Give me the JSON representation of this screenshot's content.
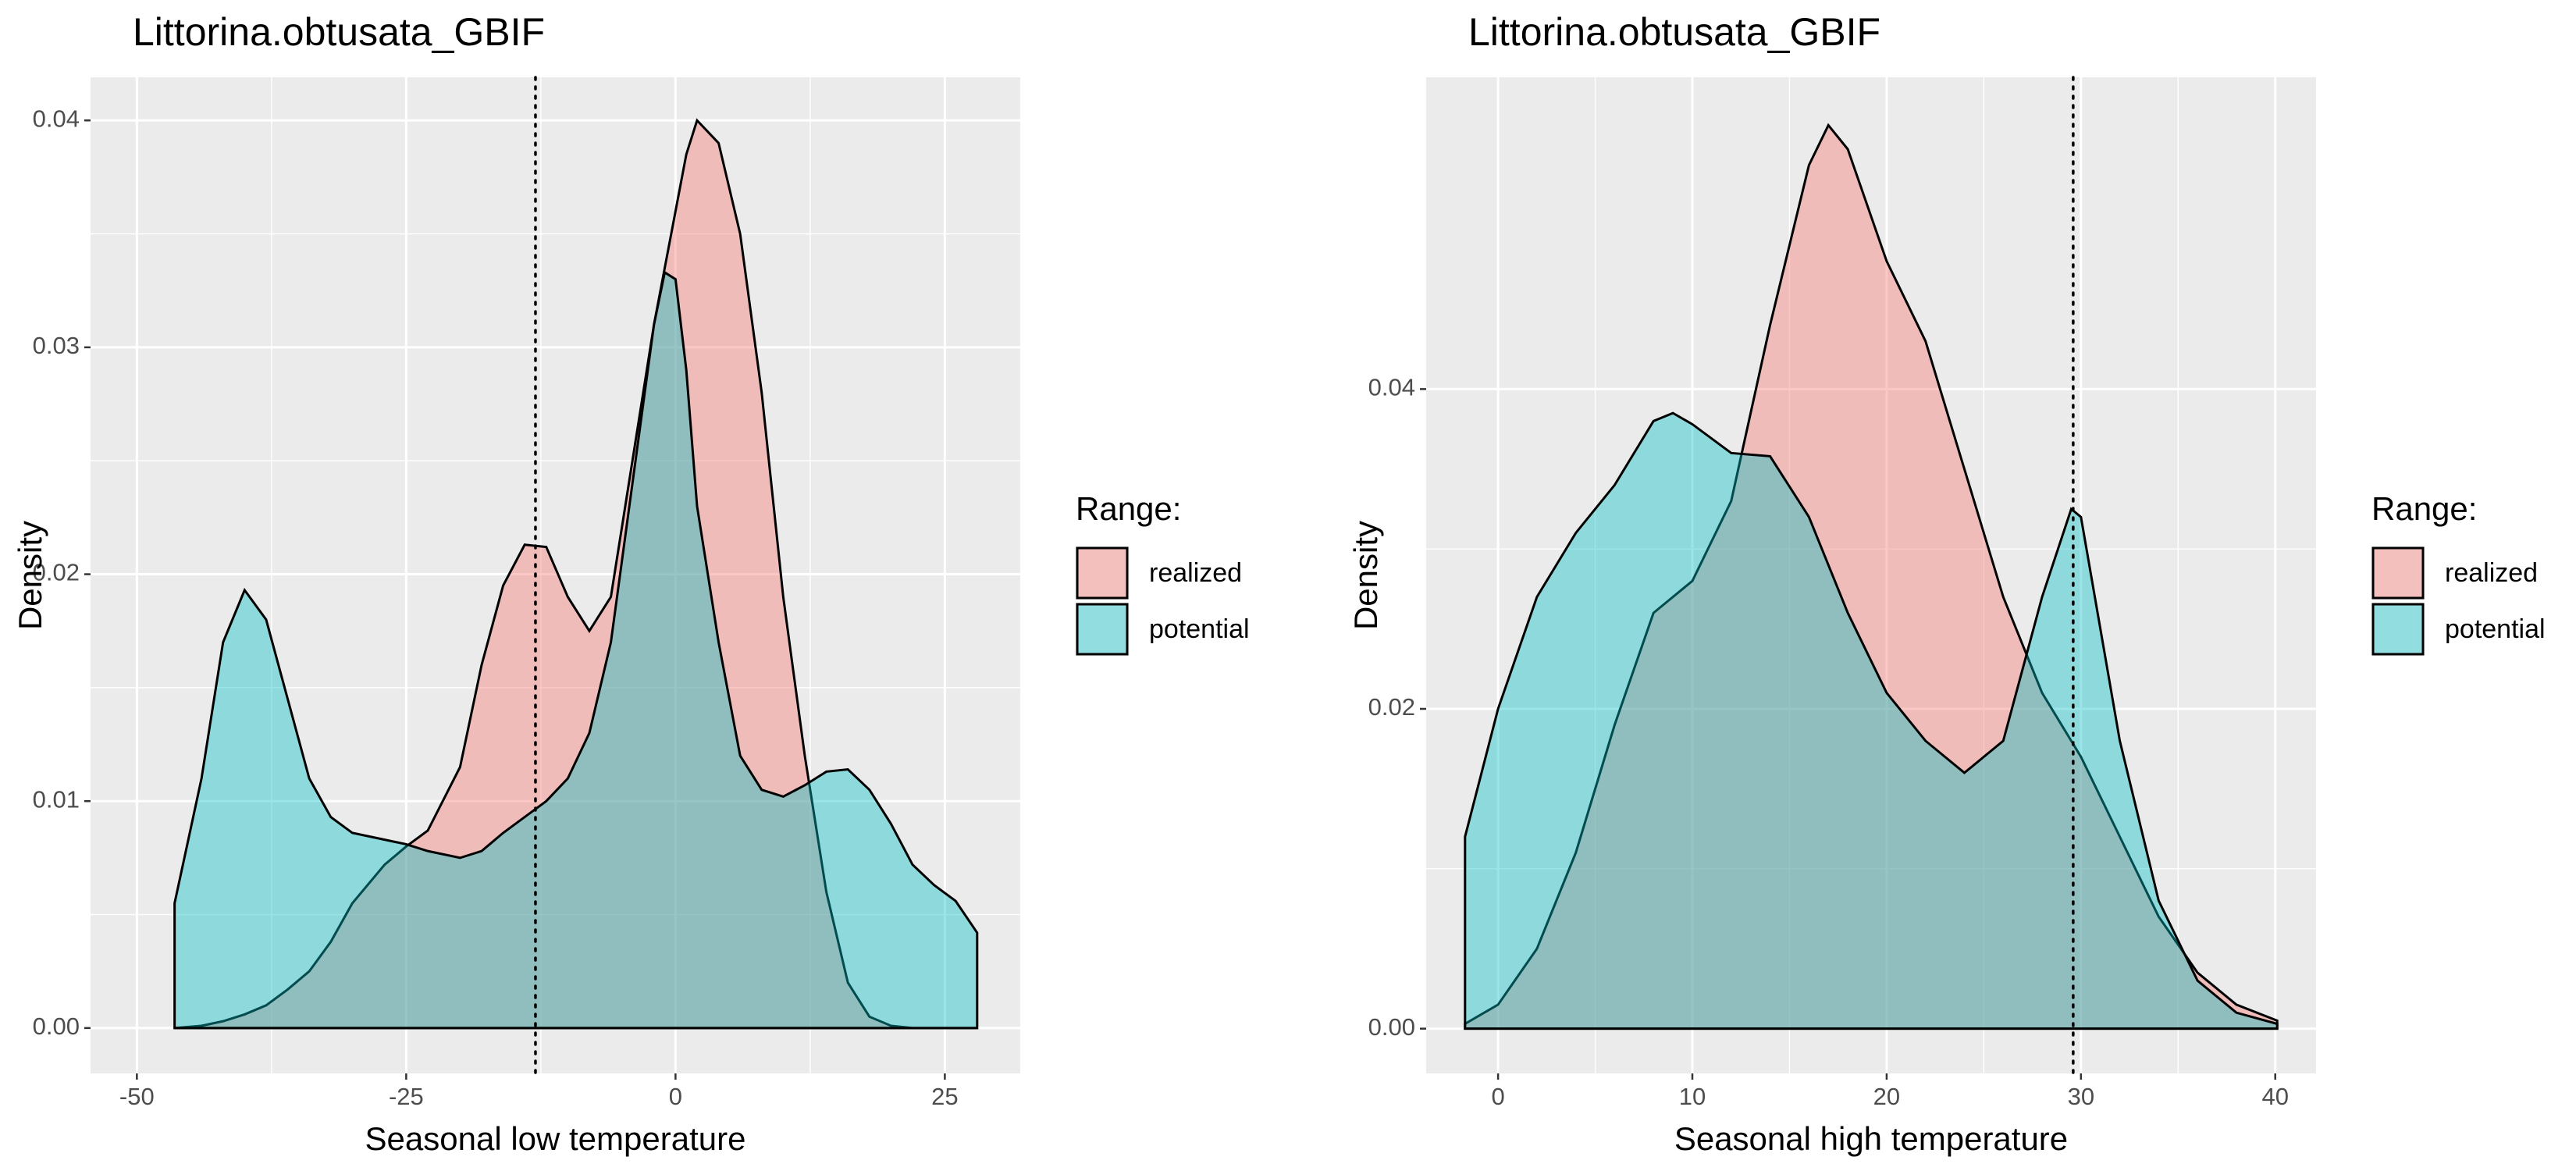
{
  "chart_data": [
    {
      "type": "density",
      "title": "Littorina.obtusata_GBIF",
      "x_label": "Seasonal low temperature",
      "y_label": "Density",
      "legend_title": "Range:",
      "x": [
        -46.5,
        -44,
        -42,
        -40,
        -38,
        -36,
        -34,
        -32,
        -30,
        -27,
        -25,
        -23,
        -20,
        -18,
        -16,
        -14,
        -12,
        -10,
        -8,
        -6,
        -4,
        -2,
        -1,
        0,
        1,
        2,
        4,
        6,
        8,
        10,
        12,
        14,
        16,
        18,
        20,
        22,
        24,
        26,
        28
      ],
      "series": [
        {
          "name": "realized",
          "color": "#F8766D",
          "values": [
            0,
            0.0001,
            0.0003,
            0.0006,
            0.001,
            0.0017,
            0.0025,
            0.0038,
            0.0055,
            0.0072,
            0.008,
            0.0087,
            0.0115,
            0.016,
            0.0195,
            0.0213,
            0.0212,
            0.019,
            0.0175,
            0.019,
            0.025,
            0.031,
            0.0335,
            0.036,
            0.0385,
            0.04,
            0.039,
            0.035,
            0.028,
            0.019,
            0.012,
            0.006,
            0.002,
            0.0005,
            0.0001,
            0,
            0,
            0,
            0
          ]
        },
        {
          "name": "potential",
          "color": "#00BFC4",
          "values": [
            0.0055,
            0.011,
            0.017,
            0.0193,
            0.018,
            0.0145,
            0.011,
            0.0093,
            0.0086,
            0.0083,
            0.0081,
            0.0078,
            0.0075,
            0.0078,
            0.0086,
            0.0093,
            0.01,
            0.011,
            0.013,
            0.017,
            0.024,
            0.031,
            0.0333,
            0.033,
            0.029,
            0.023,
            0.017,
            0.012,
            0.0105,
            0.0102,
            0.0107,
            0.0113,
            0.0114,
            0.0105,
            0.009,
            0.0072,
            0.0063,
            0.0056,
            0.0042
          ]
        }
      ],
      "vline": -13,
      "xlim": [
        -54.3,
        32
      ],
      "xticks": [
        -50,
        -25,
        0,
        25
      ],
      "ylim": [
        -0.002,
        0.0419
      ],
      "yticks": [
        {
          "value": 0,
          "label": "0.00"
        },
        {
          "value": 0.01,
          "label": "0.01"
        },
        {
          "value": 0.02,
          "label": "0.02"
        },
        {
          "value": 0.03,
          "label": "0.03"
        },
        {
          "value": 0.04,
          "label": "0.04"
        }
      ],
      "grid": true
    },
    {
      "type": "density",
      "title": "Littorina.obtusata_GBIF",
      "x_label": "Seasonal high temperature",
      "y_label": "Density",
      "legend_title": "Range:",
      "x": [
        -1.7,
        0,
        2,
        4,
        6,
        8,
        9,
        10,
        12,
        14,
        16,
        17,
        18,
        20,
        22,
        24,
        26,
        28,
        29.5,
        30,
        32,
        34,
        36,
        38,
        40.1
      ],
      "series": [
        {
          "name": "realized",
          "color": "#F8766D",
          "values": [
            0.0003,
            0.0015,
            0.005,
            0.011,
            0.019,
            0.026,
            0.027,
            0.028,
            0.033,
            0.044,
            0.054,
            0.0565,
            0.055,
            0.048,
            0.043,
            0.035,
            0.027,
            0.021,
            0.018,
            0.017,
            0.012,
            0.007,
            0.0035,
            0.0015,
            0.0005
          ]
        },
        {
          "name": "potential",
          "color": "#00BFC4",
          "values": [
            0.012,
            0.02,
            0.027,
            0.031,
            0.034,
            0.038,
            0.0385,
            0.0378,
            0.036,
            0.0358,
            0.032,
            0.029,
            0.026,
            0.021,
            0.018,
            0.016,
            0.018,
            0.027,
            0.0325,
            0.032,
            0.018,
            0.008,
            0.003,
            0.001,
            0.0003
          ]
        }
      ],
      "vline": 29.6,
      "xlim": [
        -3.7,
        42.1
      ],
      "xticks": [
        0,
        10,
        20,
        30,
        40
      ],
      "ylim": [
        -0.0028,
        0.0595
      ],
      "yticks": [
        {
          "value": 0,
          "label": "0.00"
        },
        {
          "value": 0.02,
          "label": "0.02"
        },
        {
          "value": 0.04,
          "label": "0.04"
        }
      ],
      "grid": true
    }
  ]
}
